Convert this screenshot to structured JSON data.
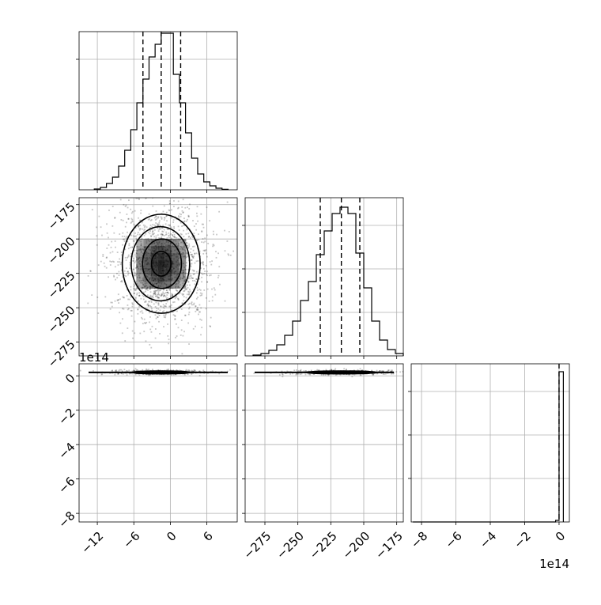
{
  "chart_data": {
    "type": "corner",
    "grid": true,
    "panels": [
      {
        "id": "hist-p1",
        "type": "histogram",
        "param": 1,
        "xlim": [
          -15,
          11
        ],
        "ylim": [
          0,
          1
        ],
        "edges": [
          -12.5,
          -11.5,
          -10.5,
          -9.5,
          -8.5,
          -7.5,
          -6.5,
          -5.5,
          -4.5,
          -3.5,
          -2.5,
          -1.5,
          -0.5,
          0.5,
          1.5,
          2.5,
          3.5,
          4.5,
          5.5,
          6.5,
          7.5,
          8.5,
          9.5
        ],
        "counts": [
          0.005,
          0.015,
          0.04,
          0.08,
          0.15,
          0.25,
          0.38,
          0.55,
          0.7,
          0.84,
          0.92,
          0.99,
          0.99,
          0.73,
          0.55,
          0.36,
          0.2,
          0.1,
          0.05,
          0.025,
          0.01,
          0.003
        ],
        "quantiles": [
          -4.5,
          -1.5,
          1.7
        ],
        "ticks": [],
        "tick_labels": []
      },
      {
        "id": "hist-p2",
        "type": "histogram",
        "param": 2,
        "xlim": [
          -290,
          -170
        ],
        "ylim": [
          0,
          1
        ],
        "edges": [
          -284,
          -278,
          -272,
          -266,
          -260,
          -254,
          -248,
          -242,
          -236,
          -230,
          -224,
          -218,
          -212,
          -206,
          -200,
          -194,
          -188,
          -182,
          -176,
          -170
        ],
        "counts": [
          0.005,
          0.015,
          0.035,
          0.07,
          0.13,
          0.22,
          0.35,
          0.47,
          0.64,
          0.79,
          0.9,
          0.94,
          0.9,
          0.65,
          0.43,
          0.22,
          0.1,
          0.04,
          0.015
        ],
        "quantiles": [
          -233,
          -217,
          -203
        ],
        "ticks": [],
        "tick_labels": []
      },
      {
        "id": "hist-p3",
        "type": "histogram",
        "param": 3,
        "xlim": [
          -8.6,
          0.6
        ],
        "ylim": [
          0,
          1
        ],
        "edges": [
          -8.5,
          -0.2,
          0,
          0.25
        ],
        "counts": [
          0.0,
          0.01,
          0.95
        ],
        "quantiles": [
          0.0
        ],
        "ticks": [
          -8,
          -6,
          -4,
          -2,
          0
        ],
        "tick_labels": [
          "−8",
          "−6",
          "−4",
          "−2",
          "0"
        ],
        "offset_label": "1e14"
      },
      {
        "id": "scatter-p1-p2",
        "type": "2d-density",
        "x_param": 1,
        "y_param": 2,
        "xlim": [
          -15,
          11
        ],
        "ylim": [
          -285,
          -170
        ],
        "center": [
          -1.5,
          -218
        ],
        "sigma": [
          3.2,
          18
        ],
        "contour_levels": [
          0.5,
          1.0,
          1.5,
          2.0
        ],
        "yticks": [
          -275,
          -250,
          -225,
          -200,
          -175
        ],
        "ytick_labels": [
          "−275",
          "−250",
          "−225",
          "−200",
          "−175"
        ]
      },
      {
        "id": "scatter-p1-p3",
        "type": "2d-density",
        "x_param": 1,
        "y_param": 3,
        "xlim": [
          -15,
          11
        ],
        "ylim": [
          -8.5,
          0.7
        ],
        "center": [
          -1.5,
          0.2
        ],
        "sigma": [
          3.2,
          0.04
        ],
        "contour_levels": [
          0.5,
          1.0,
          1.5
        ],
        "xticks": [
          -12,
          -6,
          0,
          6
        ],
        "xtick_labels": [
          "−12",
          "−6",
          "0",
          "6"
        ],
        "yticks": [
          -8,
          -6,
          -4,
          -2,
          0
        ],
        "ytick_labels": [
          "−8",
          "−6",
          "−4",
          "−2",
          "0"
        ],
        "y_offset_label": "1e14"
      },
      {
        "id": "scatter-p2-p3",
        "type": "2d-density",
        "x_param": 2,
        "y_param": 3,
        "xlim": [
          -290,
          -170
        ],
        "ylim": [
          -8.5,
          0.7
        ],
        "center": [
          -217,
          0.2
        ],
        "sigma": [
          18,
          0.04
        ],
        "contour_levels": [
          0.5,
          1.0,
          1.5
        ],
        "xticks": [
          -275,
          -250,
          -225,
          -200,
          -175
        ],
        "xtick_labels": [
          "−275",
          "−250",
          "−225",
          "−200",
          "−175"
        ]
      }
    ]
  }
}
